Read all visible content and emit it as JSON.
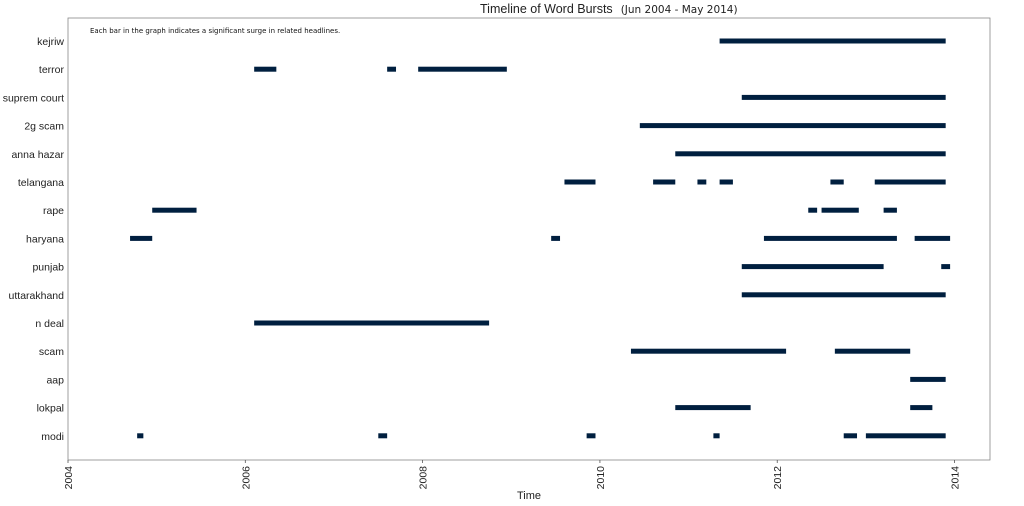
{
  "chart_data": {
    "type": "timeline",
    "title": "Timeline of Word Bursts",
    "subtitle": "(Jun 2004 - May 2014)",
    "annotation": "Each bar in the graph indicates a significant surge in related headlines.",
    "xlabel": "Time",
    "ylabel": "",
    "xlim": [
      2004.0,
      2014.4
    ],
    "xticks": [
      "2004",
      "2006",
      "2008",
      "2010",
      "2012",
      "2014"
    ],
    "grid": false,
    "bar_color": "#001f3f",
    "categories": [
      "kejriw",
      "terror",
      "suprem court",
      "2g scam",
      "anna hazar",
      "telangana",
      "rape",
      "haryana",
      "punjab",
      "uttarakhand",
      "n deal",
      "scam",
      "aap",
      "lokpal",
      "modi"
    ],
    "series": [
      {
        "label": "kejriw",
        "bursts": [
          [
            2011.35,
            2013.9
          ]
        ]
      },
      {
        "label": "terror",
        "bursts": [
          [
            2006.1,
            2006.35
          ],
          [
            2007.6,
            2007.7
          ],
          [
            2007.95,
            2008.95
          ]
        ]
      },
      {
        "label": "suprem court",
        "bursts": [
          [
            2011.6,
            2013.9
          ]
        ]
      },
      {
        "label": "2g scam",
        "bursts": [
          [
            2010.45,
            2013.9
          ]
        ]
      },
      {
        "label": "anna hazar",
        "bursts": [
          [
            2010.85,
            2013.9
          ]
        ]
      },
      {
        "label": "telangana",
        "bursts": [
          [
            2009.6,
            2009.95
          ],
          [
            2010.6,
            2010.85
          ],
          [
            2011.1,
            2011.2
          ],
          [
            2011.35,
            2011.5
          ],
          [
            2012.6,
            2012.75
          ],
          [
            2013.1,
            2013.9
          ]
        ]
      },
      {
        "label": "rape",
        "bursts": [
          [
            2004.95,
            2005.45
          ],
          [
            2012.35,
            2012.45
          ],
          [
            2012.5,
            2012.92
          ],
          [
            2013.2,
            2013.35
          ]
        ]
      },
      {
        "label": "haryana",
        "bursts": [
          [
            2004.7,
            2004.95
          ],
          [
            2009.45,
            2009.55
          ],
          [
            2011.85,
            2013.35
          ],
          [
            2013.55,
            2013.95
          ]
        ]
      },
      {
        "label": "punjab",
        "bursts": [
          [
            2011.6,
            2013.2
          ],
          [
            2013.85,
            2013.95
          ]
        ]
      },
      {
        "label": "uttarakhand",
        "bursts": [
          [
            2011.6,
            2013.9
          ]
        ]
      },
      {
        "label": "n deal",
        "bursts": [
          [
            2006.1,
            2008.75
          ]
        ]
      },
      {
        "label": "scam",
        "bursts": [
          [
            2010.35,
            2012.1
          ],
          [
            2012.65,
            2013.5
          ]
        ]
      },
      {
        "label": "aap",
        "bursts": [
          [
            2013.5,
            2013.9
          ]
        ]
      },
      {
        "label": "lokpal",
        "bursts": [
          [
            2010.85,
            2011.7
          ],
          [
            2013.5,
            2013.75
          ]
        ]
      },
      {
        "label": "modi",
        "bursts": [
          [
            2004.78,
            2004.85
          ],
          [
            2007.5,
            2007.6
          ],
          [
            2009.85,
            2009.95
          ],
          [
            2011.28,
            2011.35
          ],
          [
            2012.75,
            2012.9
          ],
          [
            2013.0,
            2013.9
          ]
        ]
      }
    ]
  }
}
